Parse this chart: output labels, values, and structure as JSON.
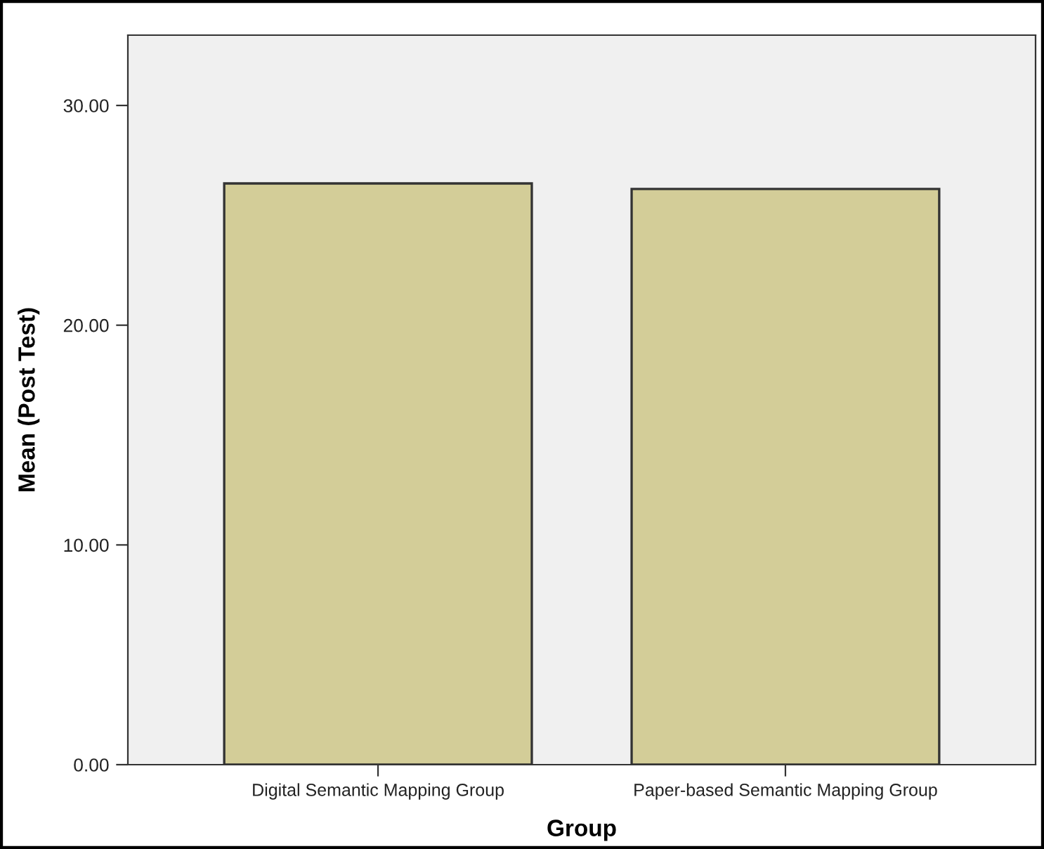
{
  "chart_data": {
    "type": "bar",
    "categories": [
      "Digital Semantic Mapping Group",
      "Paper-based Semantic Mapping Group"
    ],
    "values": [
      26.45,
      26.2
    ],
    "color": "#d3cd98",
    "xlabel": "Group",
    "ylabel": "Mean (Post Test)",
    "ylim": [
      0,
      33.2
    ],
    "yticks": [
      {
        "value": 0,
        "label": "0.00"
      },
      {
        "value": 10,
        "label": "10.00"
      },
      {
        "value": 20,
        "label": "20.00"
      },
      {
        "value": 30,
        "label": "30.00"
      }
    ],
    "grid": false,
    "legend": false
  }
}
